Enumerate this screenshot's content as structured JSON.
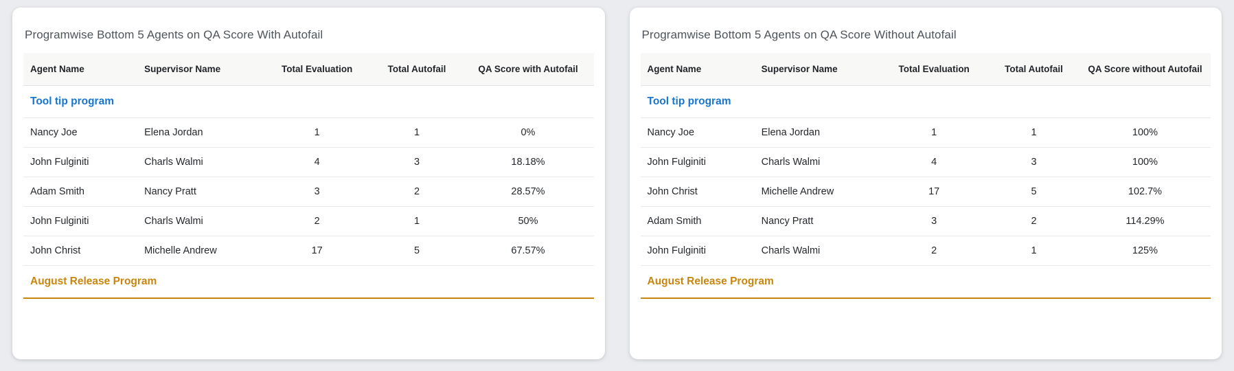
{
  "colors": {
    "page_background": "#eaecef",
    "card_background": "#ffffff",
    "header_band": "#f8f8f7",
    "group_blue": "#1776d2",
    "group_gold": "#c8860e",
    "title_text": "#4e545b",
    "cell_text": "#24282c",
    "row_divider": "#e7eaec"
  },
  "cards": [
    {
      "title": "Programwise Bottom 5 Agents on QA Score With Autofail",
      "columns": [
        "Agent Name",
        "Supervisor Name",
        "Total Evaluation",
        "Total Autofail",
        "QA Score with Autofail"
      ],
      "groups": [
        {
          "label": "Tool tip program",
          "style": "blue",
          "rows": [
            [
              "Nancy Joe",
              "Elena Jordan",
              "1",
              "1",
              "0%"
            ],
            [
              "John Fulginiti",
              "Charls Walmi",
              "4",
              "3",
              "18.18%"
            ],
            [
              "Adam Smith",
              "Nancy Pratt",
              "3",
              "2",
              "28.57%"
            ],
            [
              "John Fulginiti",
              "Charls Walmi",
              "2",
              "1",
              "50%"
            ],
            [
              "John Christ",
              "Michelle Andrew",
              "17",
              "5",
              "67.57%"
            ]
          ]
        },
        {
          "label": "August Release Program",
          "style": "gold",
          "rows": []
        }
      ]
    },
    {
      "title": "Programwise Bottom 5 Agents on QA Score Without Autofail",
      "columns": [
        "Agent Name",
        "Supervisor Name",
        "Total Evaluation",
        "Total Autofail",
        "QA Score without Autofail"
      ],
      "groups": [
        {
          "label": "Tool tip program",
          "style": "blue",
          "rows": [
            [
              "Nancy Joe",
              "Elena Jordan",
              "1",
              "1",
              "100%"
            ],
            [
              "John Fulginiti",
              "Charls Walmi",
              "4",
              "3",
              "100%"
            ],
            [
              "John Christ",
              "Michelle Andrew",
              "17",
              "5",
              "102.7%"
            ],
            [
              "Adam Smith",
              "Nancy Pratt",
              "3",
              "2",
              "114.29%"
            ],
            [
              "John Fulginiti",
              "Charls Walmi",
              "2",
              "1",
              "125%"
            ]
          ]
        },
        {
          "label": "August Release Program",
          "style": "gold",
          "rows": []
        }
      ]
    }
  ]
}
